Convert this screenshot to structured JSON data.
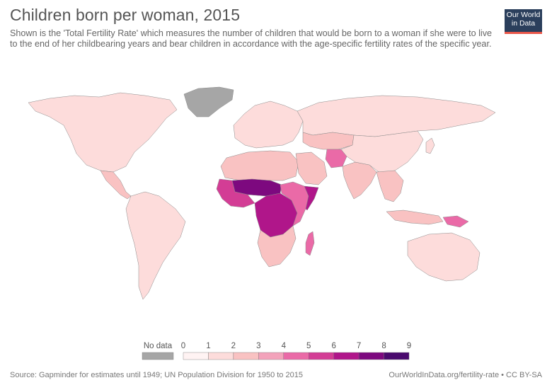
{
  "title": "Children born per woman, 2015",
  "subtitle": "Shown is the 'Total Fertility Rate' which measures the number of children that would be born to a woman if she were to live to the end of her childbearing years and bear children in accordance with the age-specific fertility rates of the specific year.",
  "logo": {
    "line1": "Our World",
    "line2": "in Data"
  },
  "legend": {
    "no_data_label": "No data",
    "no_data_color": "#a6a6a6",
    "ticks": [
      "0",
      "1",
      "2",
      "3",
      "4",
      "5",
      "6",
      "7",
      "8",
      "9"
    ],
    "bins": [
      {
        "from": 0,
        "to": 1,
        "color": "#fff3f3"
      },
      {
        "from": 1,
        "to": 2,
        "color": "#fddcdb"
      },
      {
        "from": 2,
        "to": 3,
        "color": "#f9c2c2"
      },
      {
        "from": 3,
        "to": 4,
        "color": "#f3a3bb"
      },
      {
        "from": 4,
        "to": 5,
        "color": "#ea6aa7"
      },
      {
        "from": 5,
        "to": 6,
        "color": "#d33d95"
      },
      {
        "from": 6,
        "to": 7,
        "color": "#b0168a"
      },
      {
        "from": 7,
        "to": 8,
        "color": "#7d097f"
      },
      {
        "from": 8,
        "to": 9,
        "color": "#4a0a6e"
      }
    ]
  },
  "regions": [
    {
      "name": "North America",
      "color": "#fddcdb"
    },
    {
      "name": "Greenland",
      "color": "#a6a6a6"
    },
    {
      "name": "Central America",
      "color": "#f9c2c2"
    },
    {
      "name": "South America",
      "color": "#fddcdb"
    },
    {
      "name": "Europe",
      "color": "#fddcdb"
    },
    {
      "name": "Russia",
      "color": "#fddcdb"
    },
    {
      "name": "North Africa",
      "color": "#f9c2c2"
    },
    {
      "name": "Sahel",
      "color": "#7d097f"
    },
    {
      "name": "West Africa",
      "color": "#d33d95"
    },
    {
      "name": "Central Africa",
      "color": "#b0168a"
    },
    {
      "name": "East Africa",
      "color": "#ea6aa7"
    },
    {
      "name": "Southern Africa",
      "color": "#f9c2c2"
    },
    {
      "name": "Madagascar",
      "color": "#ea6aa7"
    },
    {
      "name": "Arabian Peninsula",
      "color": "#f9c2c2"
    },
    {
      "name": "Central Asia",
      "color": "#f9c2c2"
    },
    {
      "name": "Afghanistan",
      "color": "#ea6aa7"
    },
    {
      "name": "India",
      "color": "#f9c2c2"
    },
    {
      "name": "China",
      "color": "#fddcdb"
    },
    {
      "name": "Southeast Asia",
      "color": "#f9c2c2"
    },
    {
      "name": "Indonesia",
      "color": "#f9c2c2"
    },
    {
      "name": "Papua New Guinea",
      "color": "#ea6aa7"
    },
    {
      "name": "Australia",
      "color": "#fddcdb"
    },
    {
      "name": "Japan",
      "color": "#fddcdb"
    },
    {
      "name": "Somalia",
      "color": "#b0168a"
    }
  ],
  "footer": {
    "source": "Source: Gapminder for estimates until 1949; UN Population Division for 1950 to 2015",
    "url": "OurWorldInData.org/fertility-rate • CC BY-SA"
  }
}
